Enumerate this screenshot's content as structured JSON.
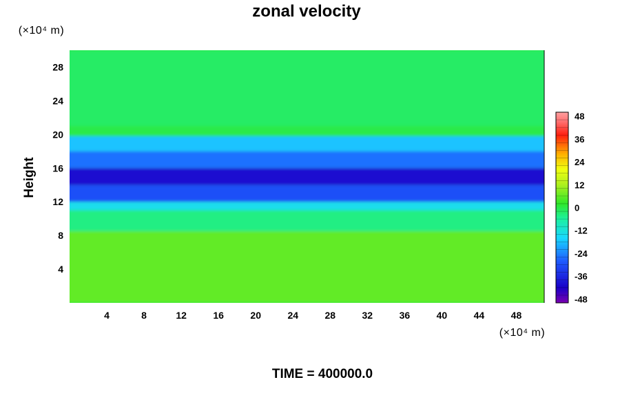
{
  "chart_data": {
    "type": "heatmap",
    "title": "zonal velocity",
    "ylabel": "Height",
    "x_unit_text": "(×10⁴ m)",
    "y_unit_text": "(×10⁴ m)",
    "xlim": [
      0,
      51
    ],
    "ylim": [
      0,
      30
    ],
    "x_ticks": [
      "4",
      "8",
      "12",
      "16",
      "20",
      "24",
      "28",
      "32",
      "36",
      "40",
      "44",
      "48"
    ],
    "y_ticks": [
      "4",
      "8",
      "12",
      "16",
      "20",
      "24",
      "28"
    ],
    "colorbar": {
      "range": [
        -50,
        50
      ],
      "ticks": [
        "48",
        "36",
        "24",
        "12",
        "0",
        "-12",
        "-24",
        "-36",
        "-48"
      ]
    },
    "bands": [
      {
        "y_from": 0,
        "y_to": 8.5,
        "value": 6
      },
      {
        "y_from": 8.5,
        "y_to": 11,
        "value": -4
      },
      {
        "y_from": 11,
        "y_to": 12,
        "value": -14
      },
      {
        "y_from": 12,
        "y_to": 14,
        "value": -30
      },
      {
        "y_from": 14,
        "y_to": 16,
        "value": -40
      },
      {
        "y_from": 16,
        "y_to": 18,
        "value": -26
      },
      {
        "y_from": 18,
        "y_to": 19.8,
        "value": -18
      },
      {
        "y_from": 19.8,
        "y_to": 21,
        "value": 0
      },
      {
        "y_from": 21,
        "y_to": 30,
        "value": -2
      }
    ],
    "footer": "TIME = 400000.0"
  }
}
